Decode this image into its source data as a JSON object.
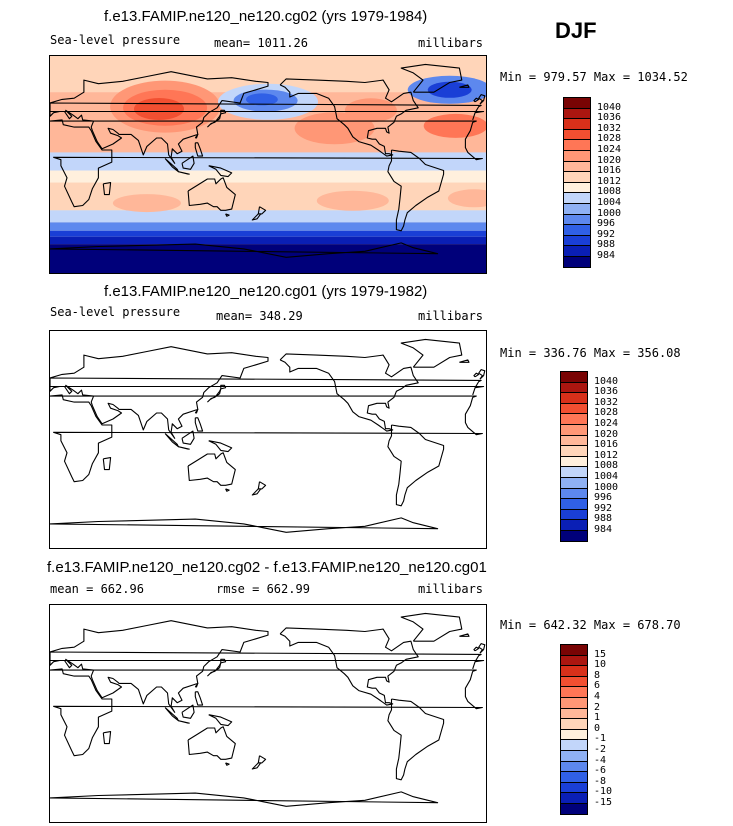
{
  "season": "DJF",
  "colors": {
    "scale": [
      "#00007a",
      "#0a1fb5",
      "#1a3fd6",
      "#3060e6",
      "#5d88ee",
      "#8fb1f4",
      "#c2d6fa",
      "#fff0dd",
      "#ffd5b9",
      "#ffb799",
      "#ff9776",
      "#ff7656",
      "#f24f31",
      "#d8301a",
      "#ab1610",
      "#790404"
    ],
    "ocean_base": "#fde2cb",
    "coast": "#000000"
  },
  "panels": [
    {
      "title": "f.e13.FAMIP.ne120_ne120.cg02 (yrs 1979-1984)",
      "left_label": "Sea-level pressure",
      "stat_label": "mean= 1011.26",
      "units": "millibars",
      "minmax": "Min = 979.57 Max = 1034.52",
      "colorbar_labels": [
        "1040",
        "1036",
        "1032",
        "1028",
        "1024",
        "1020",
        "1016",
        "1012",
        "1008",
        "1004",
        "1000",
        "996",
        "992",
        "988",
        "984"
      ],
      "filled": true
    },
    {
      "title": "f.e13.FAMIP.ne120_ne120.cg01 (yrs 1979-1982)",
      "left_label": "Sea-level pressure",
      "stat_label": "mean= 348.29",
      "units": "millibars",
      "minmax": "Min = 336.76 Max = 356.08",
      "colorbar_labels": [
        "1040",
        "1036",
        "1032",
        "1028",
        "1024",
        "1020",
        "1016",
        "1012",
        "1008",
        "1004",
        "1000",
        "996",
        "992",
        "988",
        "984"
      ],
      "filled": false
    },
    {
      "title": "f.e13.FAMIP.ne120_ne120.cg02 - f.e13.FAMIP.ne120_ne120.cg01",
      "left_label": "mean = 662.96",
      "stat_label": "rmse = 662.99",
      "units": "millibars",
      "minmax": "Min = 642.32 Max = 678.70",
      "colorbar_labels": [
        "15",
        "10",
        "8",
        "6",
        "4",
        "2",
        "1",
        "0",
        "-1",
        "-2",
        "-4",
        "-6",
        "-8",
        "-10",
        "-15"
      ],
      "filled": false
    }
  ],
  "chart_data": [
    {
      "type": "heatmap",
      "title": "f.e13.FAMIP.ne120_ne120.cg02 (yrs 1979-1984)",
      "variable": "Sea-level pressure",
      "units": "millibars",
      "mean": 1011.26,
      "min": 979.57,
      "max": 1034.52,
      "levels": [
        984,
        988,
        992,
        996,
        1000,
        1004,
        1008,
        1012,
        1016,
        1020,
        1024,
        1028,
        1032,
        1036,
        1040
      ]
    },
    {
      "type": "heatmap",
      "title": "f.e13.FAMIP.ne120_ne120.cg01 (yrs 1979-1982)",
      "variable": "Sea-level pressure",
      "units": "millibars",
      "mean": 348.29,
      "min": 336.76,
      "max": 356.08,
      "levels": [
        984,
        988,
        992,
        996,
        1000,
        1004,
        1008,
        1012,
        1016,
        1020,
        1024,
        1028,
        1032,
        1036,
        1040
      ]
    },
    {
      "type": "heatmap",
      "title": "f.e13.FAMIP.ne120_ne120.cg02 - f.e13.FAMIP.ne120_ne120.cg01",
      "units": "millibars",
      "mean": 662.96,
      "rmse": 662.99,
      "min": 642.32,
      "max": 678.7,
      "levels": [
        -15,
        -10,
        -8,
        -6,
        -4,
        -2,
        -1,
        0,
        1,
        2,
        4,
        6,
        8,
        10,
        15
      ]
    }
  ]
}
